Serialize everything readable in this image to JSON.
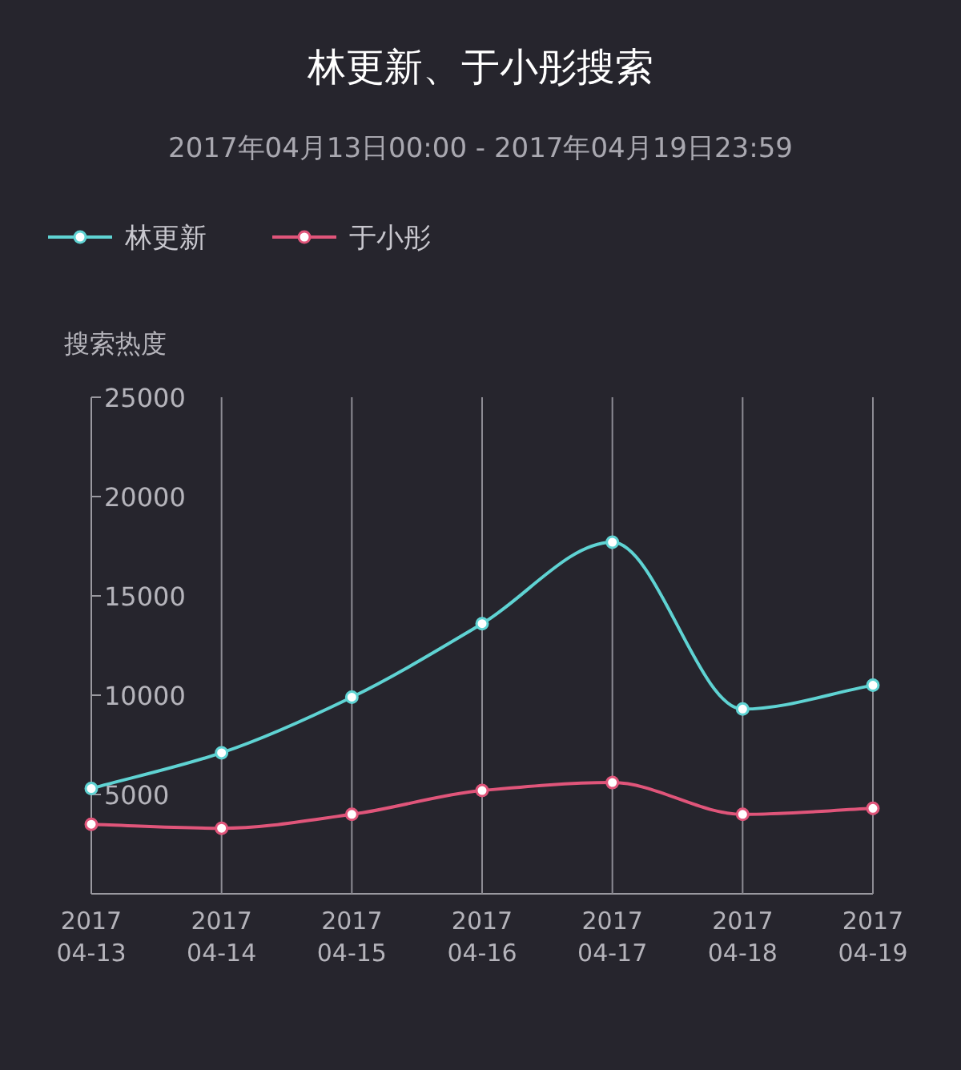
{
  "chart_data": {
    "type": "line",
    "title": "林更新、于小彤搜索",
    "subtitle": "2017年04月13日00:00 - 2017年04月19日23:59",
    "ylabel": "搜索热度",
    "categories": [
      "2017\n04-13",
      "2017\n04-14",
      "2017\n04-15",
      "2017\n04-16",
      "2017\n04-17",
      "2017\n04-18",
      "2017\n04-19"
    ],
    "series": [
      {
        "name": "林更新",
        "color": "#5fd3d3",
        "values": [
          5300,
          7100,
          9900,
          13600,
          17700,
          9300,
          10500
        ]
      },
      {
        "name": "于小彤",
        "color": "#e0557a",
        "values": [
          3500,
          3300,
          4000,
          5200,
          5600,
          4000,
          4300
        ]
      }
    ],
    "ylim": [
      0,
      25000
    ],
    "yticks": [
      5000,
      10000,
      15000,
      20000,
      25000
    ],
    "grid": "x",
    "legend": "top left",
    "marker": "circle",
    "line_style": "solid"
  }
}
